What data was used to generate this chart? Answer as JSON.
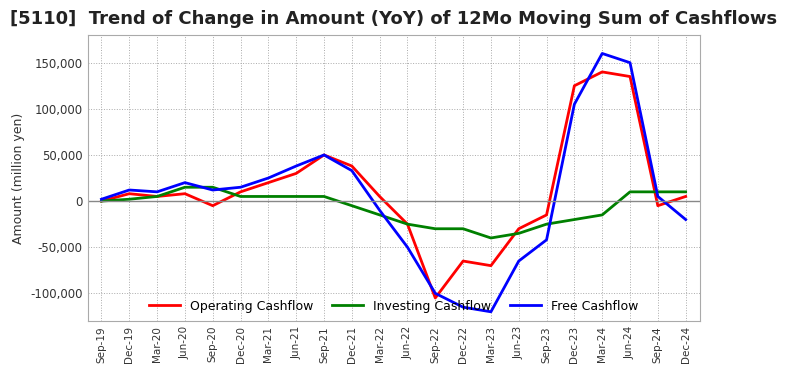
{
  "title": "[5110]  Trend of Change in Amount (YoY) of 12Mo Moving Sum of Cashflows",
  "ylabel": "Amount (million yen)",
  "x_labels": [
    "Sep-19",
    "Dec-19",
    "Mar-20",
    "Jun-20",
    "Sep-20",
    "Dec-20",
    "Mar-21",
    "Jun-21",
    "Sep-21",
    "Dec-21",
    "Mar-22",
    "Jun-22",
    "Sep-22",
    "Dec-22",
    "Mar-23",
    "Jun-23",
    "Sep-23",
    "Dec-23",
    "Mar-24",
    "Jun-24",
    "Sep-24",
    "Dec-24"
  ],
  "operating": [
    0,
    8000,
    5000,
    8000,
    -5000,
    10000,
    20000,
    30000,
    50000,
    38000,
    5000,
    -25000,
    -105000,
    -65000,
    -70000,
    -30000,
    -15000,
    125000,
    140000,
    135000,
    -5000,
    5000
  ],
  "investing": [
    0,
    2000,
    5000,
    15000,
    15000,
    5000,
    5000,
    5000,
    5000,
    -5000,
    -15000,
    -25000,
    -30000,
    -30000,
    -40000,
    -35000,
    -25000,
    -20000,
    -15000,
    10000,
    10000,
    10000
  ],
  "free": [
    2000,
    12000,
    10000,
    20000,
    12000,
    15000,
    25000,
    38000,
    50000,
    33000,
    -10000,
    -50000,
    -100000,
    -115000,
    -120000,
    -65000,
    -42000,
    105000,
    160000,
    150000,
    5000,
    -20000
  ],
  "ylim": [
    -130000,
    180000
  ],
  "yticks": [
    -100000,
    -50000,
    0,
    50000,
    100000,
    150000
  ],
  "operating_color": "#ff0000",
  "investing_color": "#008000",
  "free_color": "#0000ff",
  "background_color": "#ffffff",
  "grid_color": "#aaaaaa",
  "title_fontsize": 13,
  "title_color": "#222222"
}
